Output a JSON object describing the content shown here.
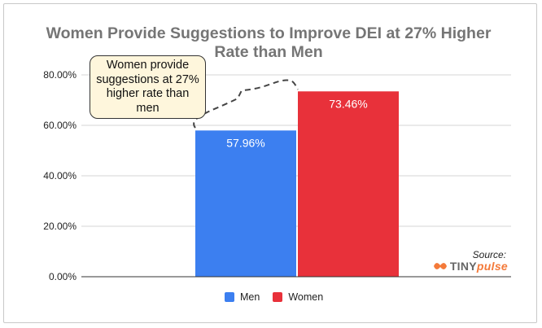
{
  "chart_data": {
    "type": "bar",
    "title": "Women Provide Suggestions to Improve DEI at 27% Higher Rate than Men",
    "categories": [
      "Men",
      "Women"
    ],
    "values": [
      57.96,
      73.46
    ],
    "data_labels": [
      "57.96%",
      "73.46%"
    ],
    "colors": [
      "#3c7ff0",
      "#e8313a"
    ],
    "ylim": [
      0,
      80
    ],
    "y_ticks": [
      "0.00%",
      "20.00%",
      "40.00%",
      "60.00%",
      "80.00%"
    ],
    "y_tick_values": [
      0,
      20,
      40,
      60,
      80
    ],
    "grid": true,
    "legend": [
      {
        "label": "Men",
        "color": "#3c7ff0"
      },
      {
        "label": "Women",
        "color": "#e8313a"
      }
    ],
    "legend_position": "bottom",
    "annotation": "Women provide suggestions at 27% higher rate than men"
  },
  "source": {
    "label": "Source:",
    "brand_tiny": "TINY",
    "brand_pulse": "pulse",
    "brand_color": "#f47a3a"
  }
}
